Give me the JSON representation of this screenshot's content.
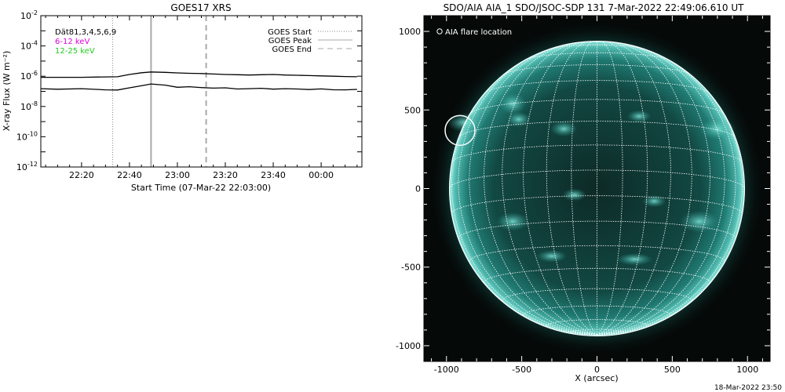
{
  "chart_data": [
    {
      "type": "line",
      "title": "GOES17 XRS",
      "xlabel": "Start Time (07-Mar-22 22:03:00)",
      "ylabel": "X-ray Flux (W m⁻²)",
      "y_scale": "log",
      "ylim": [
        "1e-12",
        "1e-2"
      ],
      "x_ticks": [
        "22:20",
        "22:40",
        "23:00",
        "23:20",
        "23:40",
        "00:00"
      ],
      "y_ticks": [
        {
          "base": "10",
          "exp": "-2"
        },
        {
          "base": "10",
          "exp": "-4"
        },
        {
          "base": "10",
          "exp": "-6"
        },
        {
          "base": "10",
          "exp": "-8"
        },
        {
          "base": "10",
          "exp": "-10"
        },
        {
          "base": "10",
          "exp": "-12"
        }
      ],
      "x": [
        "22:03",
        "22:10",
        "22:20",
        "22:30",
        "22:35",
        "22:40",
        "22:45",
        "22:49",
        "22:55",
        "23:00",
        "23:05",
        "23:10",
        "23:15",
        "23:20",
        "23:25",
        "23:30",
        "23:35",
        "23:40",
        "23:45",
        "23:50",
        "23:55",
        "00:00",
        "00:05",
        "00:10",
        "00:15"
      ],
      "series": [
        {
          "name": "6-12 keV",
          "color": "#000000",
          "values": [
            8.5e-07,
            8.5e-07,
            8.5e-07,
            9e-07,
            9.2e-07,
            1.3e-06,
            1.7e-06,
            1.9e-06,
            1.8e-06,
            1.65e-06,
            1.55e-06,
            1.5e-06,
            1.4e-06,
            1.3e-06,
            1.25e-06,
            1.2e-06,
            1.25e-06,
            1.3e-06,
            1.2e-06,
            1.15e-06,
            1.1e-06,
            1.05e-06,
            1e-06,
            9.5e-07,
            9.2e-07
          ]
        },
        {
          "name": "12-25 keV",
          "color": "#000000",
          "values": [
            1.5e-07,
            1.45e-07,
            1.4e-07,
            1.3e-07,
            1.25e-07,
            1.6e-07,
            2.5e-07,
            3e-07,
            2.5e-07,
            2e-07,
            1.9e-07,
            1.8e-07,
            1.7e-07,
            1.6e-07,
            1.5e-07,
            1.5e-07,
            1.5e-07,
            1.5e-07,
            1.45e-07,
            1.4e-07,
            1.4e-07,
            1.35e-07,
            1.3e-07,
            1.3e-07,
            1.25e-07
          ]
        }
      ],
      "event_lines": [
        {
          "label": "GOES Start",
          "time": "22:33",
          "style": "dotted"
        },
        {
          "label": "GOES Peak",
          "time": "22:49",
          "style": "solid"
        },
        {
          "label": "GOES End",
          "time": "23:12",
          "style": "dashed"
        }
      ],
      "legend_placement": "top-right",
      "info_lines": [
        {
          "text": "Dät81,3,4,5,6,9",
          "color": "#000000"
        },
        {
          "text": "6-12 keV",
          "color": "#e000e0"
        },
        {
          "text": "12-25 keV",
          "color": "#22cc22"
        }
      ]
    },
    {
      "type": "image",
      "title": "SDO/AIA AIA_1 SDO/JSOC-SDP 131  7-Mar-2022 22:49:06.610 UT",
      "xlabel": "X (arcsec)",
      "ylabel": "",
      "x_ticks": [
        "-1000",
        "-500",
        "0",
        "500",
        "1000"
      ],
      "y_ticks": [
        "1000",
        "500",
        "0",
        "-500",
        "-1000"
      ],
      "xlim": [
        -1150,
        1150
      ],
      "ylim": [
        -1100,
        1100
      ],
      "legend": "AIA flare location",
      "legend_marker": "○",
      "flare_location": {
        "x": -910,
        "y": 370
      },
      "image_colormap": "teal",
      "grid": "heliographic, 10 degree"
    }
  ],
  "footer": {
    "timestamp": "18-Mar-2022 23:50"
  }
}
